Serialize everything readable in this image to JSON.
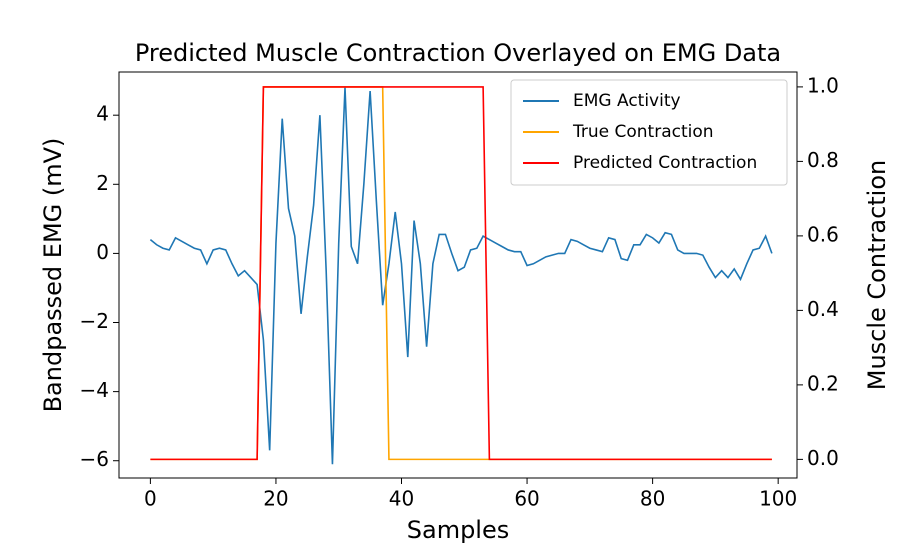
{
  "chart_data": {
    "type": "line",
    "title": "Predicted Muscle Contraction Overlayed on EMG Data",
    "xlabel": "Samples",
    "ylabel": "Bandpassed EMG (mV)",
    "y2label": "Muscle Contraction",
    "legend": "upper right",
    "x": [
      0,
      1,
      2,
      3,
      4,
      5,
      6,
      7,
      8,
      9,
      10,
      11,
      12,
      13,
      14,
      15,
      16,
      17,
      18,
      19,
      20,
      21,
      22,
      23,
      24,
      25,
      26,
      27,
      28,
      29,
      30,
      31,
      32,
      33,
      34,
      35,
      36,
      37,
      38,
      39,
      40,
      41,
      42,
      43,
      44,
      45,
      46,
      47,
      48,
      49,
      50,
      51,
      52,
      53,
      54,
      55,
      56,
      57,
      58,
      59,
      60,
      61,
      62,
      63,
      64,
      65,
      66,
      67,
      68,
      69,
      70,
      71,
      72,
      73,
      74,
      75,
      76,
      77,
      78,
      79,
      80,
      81,
      82,
      83,
      84,
      85,
      86,
      87,
      88,
      89,
      90,
      91,
      92,
      93,
      94,
      95,
      96,
      97,
      98,
      99
    ],
    "series": [
      {
        "name": "EMG Activity",
        "color": "#1f77b4",
        "axis": "y",
        "values": [
          0.4,
          0.25,
          0.15,
          0.1,
          0.45,
          0.35,
          0.25,
          0.15,
          0.1,
          -0.3,
          0.1,
          0.15,
          0.1,
          -0.3,
          -0.65,
          -0.5,
          -0.7,
          -0.9,
          -2.5,
          -5.7,
          0.3,
          3.9,
          1.3,
          0.5,
          -1.75,
          -0.1,
          1.4,
          4.0,
          -0.5,
          -6.1,
          0.3,
          4.8,
          0.2,
          -0.3,
          2.0,
          4.7,
          1.5,
          -1.5,
          -0.3,
          1.2,
          -0.3,
          -3.0,
          0.95,
          -0.3,
          -2.7,
          -0.3,
          0.55,
          0.55,
          0.0,
          -0.5,
          -0.4,
          0.1,
          0.15,
          0.5,
          0.4,
          0.3,
          0.2,
          0.1,
          0.05,
          0.05,
          -0.35,
          -0.3,
          -0.2,
          -0.1,
          -0.05,
          0.0,
          0.0,
          0.4,
          0.35,
          0.25,
          0.15,
          0.1,
          0.05,
          0.45,
          0.4,
          -0.15,
          -0.2,
          0.25,
          0.25,
          0.55,
          0.45,
          0.3,
          0.6,
          0.55,
          0.1,
          0.0,
          0.0,
          0.0,
          -0.05,
          -0.4,
          -0.7,
          -0.5,
          -0.7,
          -0.45,
          -0.75,
          -0.3,
          0.1,
          0.15,
          0.5,
          0.0
        ]
      },
      {
        "name": "True Contraction",
        "color": "orange",
        "axis": "y2",
        "values": [
          0,
          0,
          0,
          0,
          0,
          0,
          0,
          0,
          0,
          0,
          0,
          0,
          0,
          0,
          0,
          0,
          0,
          0,
          1,
          1,
          1,
          1,
          1,
          1,
          1,
          1,
          1,
          1,
          1,
          1,
          1,
          1,
          1,
          1,
          1,
          1,
          1,
          1,
          0,
          0,
          0,
          0,
          0,
          0,
          0,
          0,
          0,
          0,
          0,
          0,
          0,
          0,
          0,
          0,
          0,
          0,
          0,
          0,
          0,
          0,
          0,
          0,
          0,
          0,
          0,
          0,
          0,
          0,
          0,
          0,
          0,
          0,
          0,
          0,
          0,
          0,
          0,
          0,
          0,
          0,
          0,
          0,
          0,
          0,
          0,
          0,
          0,
          0,
          0,
          0,
          0,
          0,
          0,
          0,
          0,
          0,
          0,
          0,
          0,
          0
        ]
      },
      {
        "name": "Predicted Contraction",
        "color": "red",
        "axis": "y2",
        "values": [
          0,
          0,
          0,
          0,
          0,
          0,
          0,
          0,
          0,
          0,
          0,
          0,
          0,
          0,
          0,
          0,
          0,
          0,
          1,
          1,
          1,
          1,
          1,
          1,
          1,
          1,
          1,
          1,
          1,
          1,
          1,
          1,
          1,
          1,
          1,
          1,
          1,
          1,
          1,
          1,
          1,
          1,
          1,
          1,
          1,
          1,
          1,
          1,
          1,
          1,
          1,
          1,
          1,
          1,
          0,
          0,
          0,
          0,
          0,
          0,
          0,
          0,
          0,
          0,
          0,
          0,
          0,
          0,
          0,
          0,
          0,
          0,
          0,
          0,
          0,
          0,
          0,
          0,
          0,
          0,
          0,
          0,
          0,
          0,
          0,
          0,
          0,
          0,
          0,
          0,
          0,
          0,
          0,
          0,
          0,
          0,
          0,
          0,
          0,
          0
        ]
      }
    ],
    "xlim": [
      -5,
      103
    ],
    "xticks": [
      0,
      20,
      40,
      60,
      80,
      100
    ],
    "ylim": [
      -6.5,
      5.25
    ],
    "yticks": [
      {
        "value": -6,
        "label": "−6"
      },
      {
        "value": -4,
        "label": "−4"
      },
      {
        "value": -2,
        "label": "−2"
      },
      0,
      2,
      4
    ],
    "y2lim": [
      -0.05,
      1.04
    ],
    "y2ticks": [
      {
        "value": 0,
        "label": "0.0"
      },
      0.2,
      0.4,
      0.6,
      0.8,
      {
        "value": 1,
        "label": "1.0"
      }
    ]
  }
}
